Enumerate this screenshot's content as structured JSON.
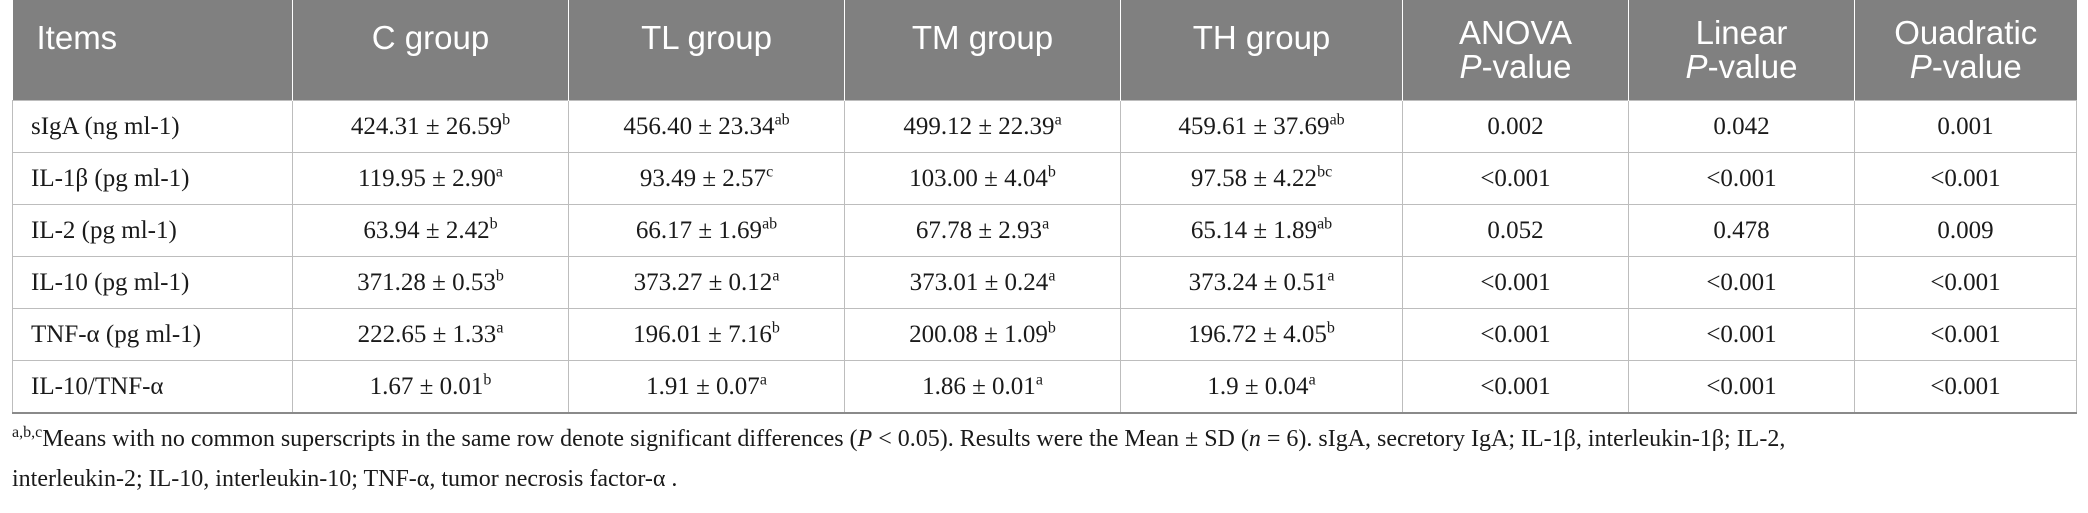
{
  "table": {
    "headers": {
      "items": "Items",
      "c_group": "C group",
      "tl_group": "TL group",
      "tm_group": "TM group",
      "th_group": "TH group",
      "anova": {
        "line1": "ANOVA",
        "p": "P",
        "suffix": "-value"
      },
      "linear": {
        "line1": "Linear",
        "p": "P",
        "suffix": "-value"
      },
      "quadratic": {
        "line1": "Ouadratic",
        "p": "P",
        "suffix": "-value"
      }
    },
    "rows": [
      {
        "item": "sIgA (ng ml-1)",
        "c": {
          "value": "424.31 ± 26.59",
          "sup": "b"
        },
        "tl": {
          "value": "456.40 ± 23.34",
          "sup": "ab"
        },
        "tm": {
          "value": "499.12 ± 22.39",
          "sup": "a"
        },
        "th": {
          "value": "459.61 ± 37.69",
          "sup": "ab"
        },
        "anova": "0.002",
        "linear": "0.042",
        "quadratic": "0.001"
      },
      {
        "item": "IL-1β (pg ml-1)",
        "c": {
          "value": "119.95 ± 2.90",
          "sup": "a"
        },
        "tl": {
          "value": "93.49 ± 2.57",
          "sup": "c"
        },
        "tm": {
          "value": "103.00 ± 4.04",
          "sup": "b"
        },
        "th": {
          "value": "97.58 ± 4.22",
          "sup": "bc"
        },
        "anova": "<0.001",
        "linear": "<0.001",
        "quadratic": "<0.001"
      },
      {
        "item": "IL-2 (pg ml-1)",
        "c": {
          "value": "63.94 ± 2.42",
          "sup": "b"
        },
        "tl": {
          "value": "66.17 ± 1.69",
          "sup": "ab"
        },
        "tm": {
          "value": "67.78 ± 2.93",
          "sup": "a"
        },
        "th": {
          "value": "65.14 ± 1.89",
          "sup": "ab"
        },
        "anova": "0.052",
        "linear": "0.478",
        "quadratic": "0.009"
      },
      {
        "item": "IL-10 (pg ml-1)",
        "c": {
          "value": "371.28 ± 0.53",
          "sup": "b"
        },
        "tl": {
          "value": "373.27 ± 0.12",
          "sup": "a"
        },
        "tm": {
          "value": "373.01 ± 0.24",
          "sup": "a"
        },
        "th": {
          "value": "373.24 ± 0.51",
          "sup": "a"
        },
        "anova": "<0.001",
        "linear": "<0.001",
        "quadratic": "<0.001"
      },
      {
        "item": "TNF-α (pg ml-1)",
        "c": {
          "value": "222.65 ± 1.33",
          "sup": "a"
        },
        "tl": {
          "value": "196.01 ± 7.16",
          "sup": "b"
        },
        "tm": {
          "value": "200.08 ± 1.09",
          "sup": "b"
        },
        "th": {
          "value": "196.72 ± 4.05",
          "sup": "b"
        },
        "anova": "<0.001",
        "linear": "<0.001",
        "quadratic": "<0.001"
      },
      {
        "item": "IL-10/TNF-α",
        "c": {
          "value": "1.67 ± 0.01",
          "sup": "b"
        },
        "tl": {
          "value": "1.91 ± 0.07",
          "sup": "a"
        },
        "tm": {
          "value": "1.86 ± 0.01",
          "sup": "a"
        },
        "th": {
          "value": "1.9 ± 0.04",
          "sup": "a"
        },
        "anova": "<0.001",
        "linear": "<0.001",
        "quadratic": "<0.001"
      }
    ]
  },
  "footnote": {
    "sup": "a,b,c",
    "text1": "Means with no common superscripts in the same row denote significant differences (",
    "p": "P",
    "text2": " < 0.05). Results were the Mean ± SD (",
    "n": "n",
    "text3": " = 6). sIgA, secretory IgA; IL-1β, interleukin-1β; IL-2,",
    "line2": "interleukin-2; IL-10, interleukin-10; TNF-α, tumor necrosis factor-α ."
  },
  "colors": {
    "header_bg": "#808080",
    "header_text": "#ffffff",
    "border": "#bdbdbd"
  }
}
